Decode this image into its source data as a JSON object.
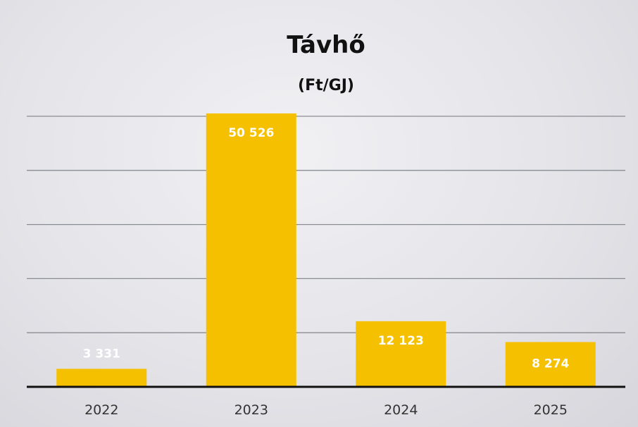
{
  "chart_data": {
    "type": "bar",
    "title": "Távhő",
    "subtitle": "(Ft/GJ)",
    "xlabel": "",
    "ylabel": "",
    "categories": [
      "2022",
      "2023",
      "2024",
      "2025"
    ],
    "values": [
      3331,
      50526,
      12123,
      8274
    ],
    "data_labels": [
      "3 331",
      "50 526",
      "12 123",
      "8 274"
    ],
    "ylim": [
      0,
      50000
    ],
    "grid": true,
    "legend": "none",
    "bar_color": "#f5c000",
    "gridline_color": "#8a8d94",
    "axis_color": "#111111"
  }
}
